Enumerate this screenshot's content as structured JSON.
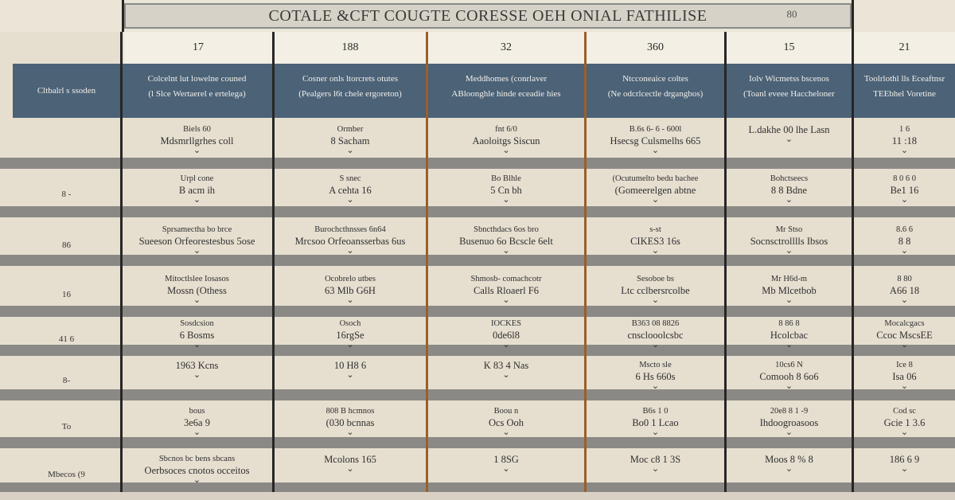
{
  "title": "COTALE &CFT COUGTE CORESSE OEH ONIAL FATHILISE",
  "title_right": "80",
  "column_numbers": [
    "17",
    "188",
    "32",
    "360",
    "15",
    "21"
  ],
  "header": {
    "row_label": "Cltbalrl s ssoden",
    "columns": [
      {
        "line1": "Colcelnt lut lowelne couned",
        "line2": "(l Slce Wertaerel e ertelega)"
      },
      {
        "line1": "Cosner onls ltorcrets otutes",
        "line2": "(Pealgers l6t chele ergoreton)"
      },
      {
        "line1": "Meddhomes (conrlaver",
        "line2": "ABloonghle hinde eceadie hies"
      },
      {
        "line1": "Ntcconeaice coltes",
        "line2": "(Ne odcrlcectle drgangbos)"
      },
      {
        "line1": "Iolv Wicmetss bscenos",
        "line2": "(Toanl eveee Haccheloner"
      },
      {
        "line1": "Toolrlothl lls Eceaftnsr",
        "line2": "TEEbhel Voretine"
      }
    ]
  },
  "rows": [
    {
      "label": "",
      "cells": [
        {
          "small": "Biels 60",
          "big": "Mdsmrllgrhes coll"
        },
        {
          "small": "Ormber",
          "big": "8 Sacham"
        },
        {
          "small": "fnt 6/0",
          "big": "Aaoloitgs Siscun"
        },
        {
          "small": "B.6s 6- 6 - 600l",
          "big": "Hsecsg Culsmelhs 665"
        },
        {
          "small": "",
          "big": "L.dakhe 00 lhe Lasn"
        },
        {
          "small": "1 6",
          "big": "11 :18"
        }
      ]
    },
    {
      "label": "8 -",
      "cells": [
        {
          "small": "Urpl cone",
          "big": "B acm ih"
        },
        {
          "small": "S snec",
          "big": "A cehta 16"
        },
        {
          "small": "Bo Blhle",
          "big": "5 Cn bh"
        },
        {
          "small": "(Ocutumelto bedu bachee",
          "big": "(Gomeerelgen abtne"
        },
        {
          "small": "Bohctseecs",
          "big": "8 8 Bdne"
        },
        {
          "small": "8 0 6 0",
          "big": "Be1 16"
        }
      ]
    },
    {
      "label": "86",
      "cells": [
        {
          "small": "Sprsamectha bo brce",
          "big": "Sueeson Orfeorestesbus 5ose"
        },
        {
          "small": "Burochcthnsses 6n64",
          "big": "Mrcsoo Orfeoansserbas 6us"
        },
        {
          "small": "Sbncthdacs 6os bro",
          "big": "Busenuo 6o Bcscle 6elt"
        },
        {
          "small": "s-st",
          "big": "CIKES3 16s"
        },
        {
          "small": "Mr Stso",
          "big": "Socnsctrolllls Ibsos"
        },
        {
          "small": "8.6 6",
          "big": "8 8"
        }
      ]
    },
    {
      "label": "16",
      "cells": [
        {
          "small": "Mitoctlslee  Iosasos",
          "big": "Mossn (Othess"
        },
        {
          "small": "Ocobrelo  utbes",
          "big": "63 Mlb G6H"
        },
        {
          "small": "Shmosb- comachcotr",
          "big": "Calls Rloaerl F6"
        },
        {
          "small": "Sesoboe bs",
          "big": "Ltc cclbersrcolbe"
        },
        {
          "small": "Mr H6d-m",
          "big": "Mb Mlcetbob"
        },
        {
          "small": "8 80",
          "big": "A66 18"
        }
      ]
    },
    {
      "label": "41 6",
      "cells": [
        {
          "small": "Sosdcsion",
          "big": "6 Bosms"
        },
        {
          "small": "Osoch",
          "big": "16rgSe"
        },
        {
          "small": "IOCKES",
          "big": "0de6l8"
        },
        {
          "small": "B363 08 8826",
          "big": "cnsclooolcsbc"
        },
        {
          "small": "8 86 8",
          "big": "Hcolcbac"
        },
        {
          "small": "Mocalcgacs",
          "big": "Ccoc MscsEE"
        }
      ]
    },
    {
      "label": "8-",
      "cells": [
        {
          "small": "",
          "big": "1963 Kcns"
        },
        {
          "small": "",
          "big": "10 H8 6"
        },
        {
          "small": "",
          "big": "K 83 4 Nas"
        },
        {
          "small": "Mscto sle",
          "big": "6 Hs 660s"
        },
        {
          "small": "10cs6 N",
          "big": "Comooh 8 6o6"
        },
        {
          "small": "Ice 8",
          "big": "Isa  06"
        }
      ]
    },
    {
      "label": "To",
      "cells": [
        {
          "small": "bous",
          "big": "3e6a 9"
        },
        {
          "small": "808 B hcmnos",
          "big": "(030 bcnnas"
        },
        {
          "small": "Boou n",
          "big": "Ocs  Ooh"
        },
        {
          "small": "B6s 1 0",
          "big": "Bo0 1 Lcao"
        },
        {
          "small": "20e8 8 1 -9",
          "big": "Ihdoogroasoos"
        },
        {
          "small": "Cod sc",
          "big": "Gcie  1 3.6"
        }
      ]
    },
    {
      "label": "Mbecos (9",
      "cells": [
        {
          "small": "Sbcnos bc bens sbcans",
          "big": "Oerbsoces cnotos occeitos"
        },
        {
          "small": "",
          "big": "Mcolons 165"
        },
        {
          "small": "",
          "big": "1 8SG"
        },
        {
          "small": "",
          "big": "Moc c8 1 3S"
        },
        {
          "small": "",
          "big": "Moos 8 % 8"
        },
        {
          "small": "",
          "big": "186 6 9"
        }
      ]
    }
  ]
}
